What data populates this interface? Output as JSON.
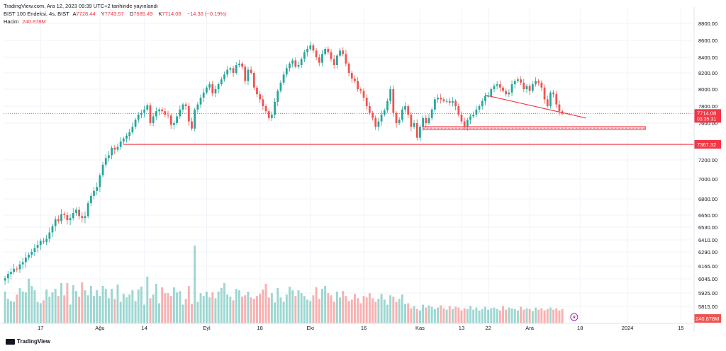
{
  "header": {
    "published": "TradingView.com, Ara 12, 2023 09:39 UTC+2 tarihinde yayınlandı",
    "symbol": "BIST 100 Endeksi, 4s, BIST",
    "open_label": "A",
    "open": "7728.44",
    "high_label": "Y",
    "high": "7743.57",
    "low_label": "D",
    "low": "7685.49",
    "close_label": "K",
    "close": "7714.08",
    "change": "−14.36 (−0.19%)",
    "volume_label": "Hacim",
    "volume": "240.878M"
  },
  "footer": {
    "brand": "TradingView"
  },
  "colors": {
    "up": "#26a69a",
    "down": "#ef5350",
    "line": "#f23645",
    "axis_text": "#131722",
    "grid": "#f0f3fa"
  },
  "chart_data": {
    "type": "candlestick",
    "title": "",
    "y_ticks": [
      8800,
      8600,
      8400,
      8200,
      8000,
      7800,
      7600,
      7200,
      7000,
      6800,
      6650,
      6530,
      6410,
      6290,
      6165,
      6045,
      5925,
      5815
    ],
    "x_ticks": [
      "17",
      "Ağu",
      "14",
      "Eyl",
      "18",
      "Eki",
      "16",
      "Kas",
      "13",
      "22",
      "Ara",
      "18",
      "2024",
      "15"
    ],
    "x_tick_bar_index": [
      12,
      32,
      47,
      68,
      86,
      103,
      121,
      140,
      154,
      163,
      177,
      194,
      210,
      228
    ],
    "total_slots": 232,
    "price_labels": [
      {
        "value": 7714.08,
        "text": "7714.08",
        "sub": "03:35:31"
      },
      {
        "value": 7367.32,
        "text": "7367.32"
      }
    ],
    "volume_label": "240.878M",
    "horizontal_lines": [
      {
        "value": 7367.32,
        "from_bar": 40
      },
      {
        "value": 7560,
        "from_bar": 141,
        "to_bar": 216
      },
      {
        "value": 7530,
        "from_bar": 141,
        "to_bar": 216
      }
    ],
    "zone_bands": [
      {
        "low": 7528,
        "high": 7562,
        "from_bar": 141,
        "to_bar": 216
      }
    ],
    "trend_lines": [
      {
        "from_bar": 162,
        "from_value": 7930,
        "to_bar": 196,
        "to_value": 7660
      }
    ],
    "close_series": [
      6050,
      6090,
      6110,
      6140,
      6135,
      6180,
      6200,
      6240,
      6265,
      6290,
      6330,
      6360,
      6400,
      6390,
      6420,
      6480,
      6540,
      6610,
      6590,
      6660,
      6650,
      6600,
      6620,
      6670,
      6700,
      6640,
      6620,
      6640,
      6760,
      6830,
      6880,
      6920,
      7040,
      7150,
      7220,
      7250,
      7330,
      7310,
      7340,
      7400,
      7430,
      7460,
      7500,
      7560,
      7640,
      7700,
      7720,
      7760,
      7810,
      7600,
      7680,
      7740,
      7760,
      7740,
      7700,
      7690,
      7580,
      7600,
      7680,
      7760,
      7820,
      7800,
      7620,
      7540,
      7760,
      7820,
      7900,
      7960,
      8020,
      8060,
      7950,
      8000,
      8060,
      8120,
      8180,
      8240,
      8260,
      8200,
      8300,
      8320,
      8280,
      8100,
      8240,
      8200,
      8020,
      7940,
      7880,
      7800,
      7740,
      7660,
      7700,
      7850,
      7980,
      8080,
      8180,
      8260,
      8320,
      8360,
      8280,
      8300,
      8380,
      8460,
      8500,
      8540,
      8480,
      8400,
      8330,
      8440,
      8500,
      8460,
      8380,
      8300,
      8420,
      8480,
      8440,
      8320,
      8200,
      8130,
      8100,
      8000,
      7980,
      7900,
      7800,
      7720,
      7660,
      7560,
      7620,
      7700,
      7750,
      7860,
      8000,
      7720,
      7600,
      7640,
      7760,
      7800,
      7700,
      7560,
      7600,
      7440,
      7560,
      7660,
      7600,
      7660,
      7760,
      7880,
      7900,
      7880,
      7860,
      7860,
      7840,
      7860,
      7800,
      7700,
      7620,
      7560,
      7640,
      7680,
      7700,
      7760,
      7800,
      7860,
      7920,
      7920,
      8000,
      8040,
      8060,
      8020,
      7980,
      7940,
      7960,
      8060,
      8100,
      8120,
      8080,
      8000,
      8040,
      7980,
      8060,
      8100,
      8080,
      8020,
      7880,
      7800,
      7960,
      7940,
      7820,
      7740,
      7714
    ],
    "volume_series": [
      44,
      34,
      31,
      30,
      40,
      49,
      44,
      43,
      62,
      52,
      46,
      30,
      28,
      32,
      47,
      37,
      43,
      48,
      38,
      56,
      39,
      56,
      26,
      53,
      45,
      37,
      57,
      46,
      39,
      52,
      38,
      46,
      38,
      52,
      48,
      35,
      48,
      34,
      54,
      30,
      41,
      36,
      40,
      46,
      31,
      47,
      51,
      26,
      65,
      35,
      40,
      55,
      28,
      50,
      42,
      42,
      38,
      50,
      43,
      45,
      26,
      34,
      52,
      27,
      108,
      30,
      42,
      38,
      44,
      36,
      43,
      35,
      44,
      49,
      56,
      40,
      37,
      32,
      48,
      46,
      37,
      39,
      44,
      36,
      34,
      38,
      41,
      47,
      55,
      36,
      42,
      29,
      49,
      36,
      30,
      40,
      51,
      46,
      38,
      46,
      42,
      38,
      33,
      31,
      39,
      50,
      34,
      48,
      52,
      42,
      39,
      30,
      44,
      36,
      45,
      38,
      31,
      33,
      41,
      35,
      28,
      38,
      36,
      42,
      35,
      30,
      34,
      41,
      33,
      26,
      39,
      37,
      30,
      34,
      40,
      27,
      28,
      21,
      24,
      20,
      18,
      26,
      22,
      25,
      23,
      20,
      22,
      25,
      21,
      19,
      24,
      20,
      23,
      22,
      18,
      21,
      20,
      24,
      19,
      22,
      18,
      20,
      23,
      19,
      21,
      22,
      20,
      18,
      24,
      19,
      22,
      21,
      20,
      18,
      23,
      19,
      21,
      20,
      17,
      22,
      19,
      21,
      18,
      20,
      22,
      19,
      21,
      18,
      20,
      22,
      19,
      21,
      17,
      15
    ]
  }
}
